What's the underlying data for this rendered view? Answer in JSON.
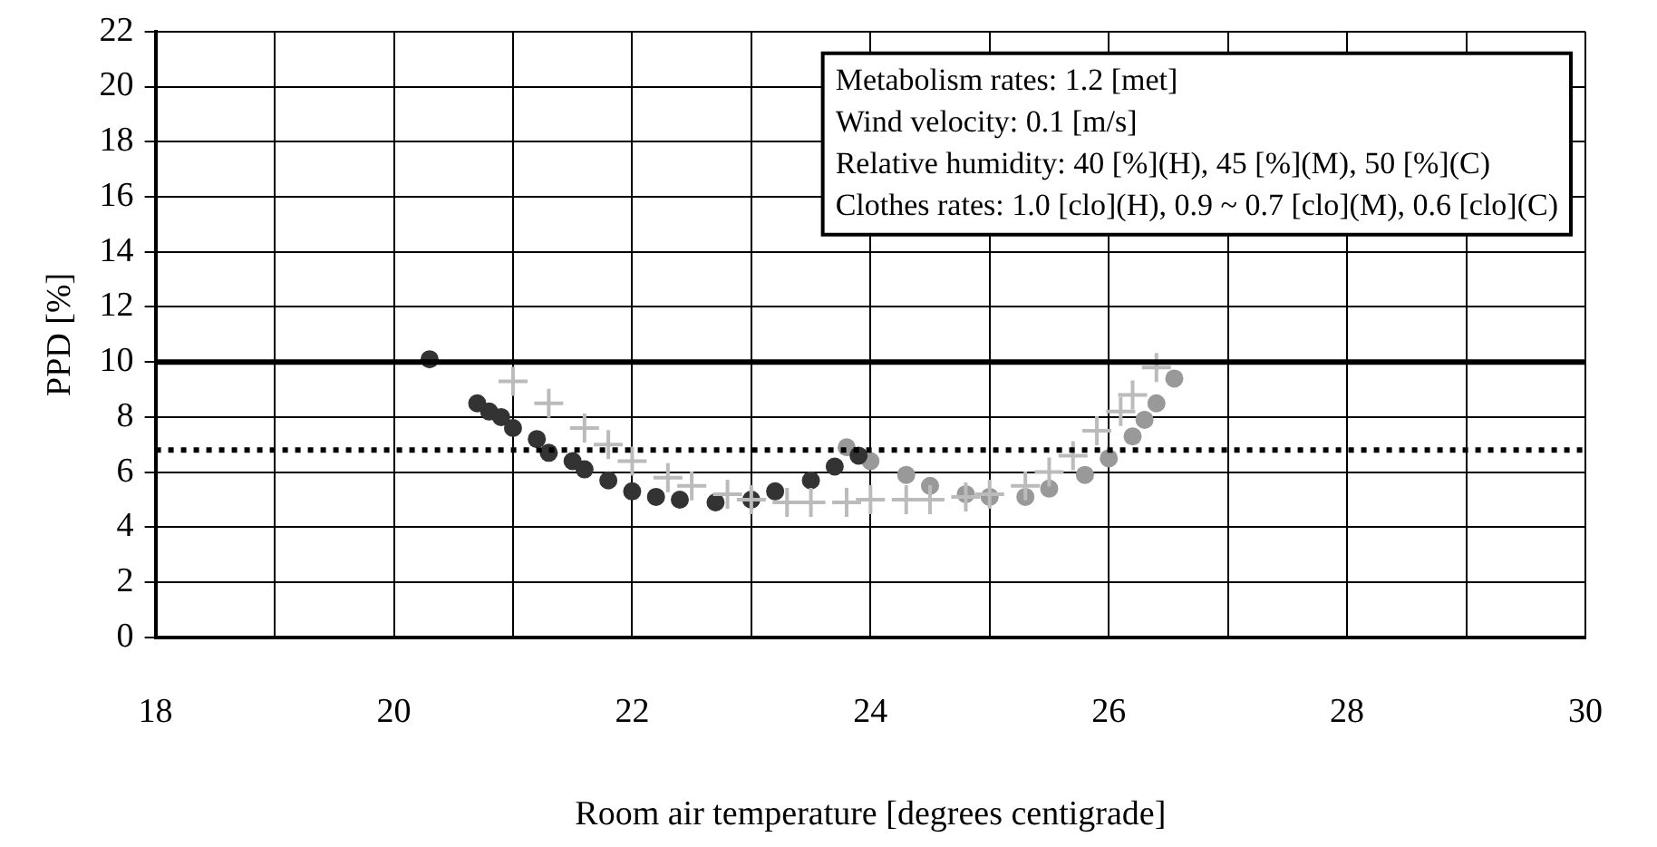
{
  "chart_data": {
    "type": "scatter",
    "xlabel": "Room air temperature [degrees centigrade]",
    "ylabel": "PPD [%]",
    "xlim": [
      18,
      30
    ],
    "xticks": [
      18,
      {
        "value": 19,
        "label": null
      },
      20,
      {
        "value": 21,
        "label": null
      },
      22,
      {
        "value": 23,
        "label": null
      },
      24,
      {
        "value": 25,
        "label": null
      },
      26,
      {
        "value": 27,
        "label": null
      },
      28,
      {
        "value": 29,
        "label": null
      },
      30
    ],
    "ylim": [
      0,
      22
    ],
    "yticks": [
      0,
      2,
      4,
      6,
      8,
      10,
      12,
      14,
      16,
      18,
      20,
      22
    ],
    "grid": true,
    "legend": false,
    "series": [
      {
        "color": "#bbbbbb",
        "marker": "cross",
        "x": [
          21.0,
          21.3,
          21.6,
          21.8,
          22.0,
          22.3,
          22.5,
          22.8,
          23.0,
          23.3,
          23.5,
          23.8,
          24.0,
          24.3,
          24.5,
          24.8,
          25.0,
          25.3,
          25.5,
          25.7,
          25.9,
          26.1,
          26.2,
          26.4
        ],
        "values": [
          9.3,
          8.5,
          7.6,
          7.0,
          6.4,
          5.8,
          5.5,
          5.2,
          5.0,
          4.9,
          4.9,
          4.9,
          5.0,
          5.0,
          5.0,
          5.1,
          5.2,
          5.5,
          6.0,
          6.6,
          7.5,
          8.2,
          8.8,
          9.8
        ]
      },
      {
        "color": "#333333",
        "marker": "circle",
        "x": [
          20.3,
          20.7,
          20.8,
          20.9,
          21.0,
          21.2,
          21.3,
          21.5,
          21.6,
          21.8,
          22.0,
          22.2,
          22.4,
          22.7,
          23.0,
          23.2,
          23.5,
          23.7,
          23.9
        ],
        "values": [
          10.1,
          8.5,
          8.2,
          8.0,
          7.6,
          7.2,
          6.7,
          6.4,
          6.1,
          5.7,
          5.3,
          5.1,
          5.0,
          4.9,
          5.0,
          5.3,
          5.7,
          6.2,
          6.6
        ]
      },
      {
        "color": "#999999",
        "marker": "circle",
        "x": [
          23.8,
          24.0,
          24.3,
          24.5,
          24.8,
          25.0,
          25.3,
          25.5,
          25.8,
          26.0,
          26.2,
          26.3,
          26.4,
          26.55
        ],
        "values": [
          6.9,
          6.4,
          5.9,
          5.5,
          5.2,
          5.1,
          5.1,
          5.4,
          5.9,
          6.5,
          7.3,
          7.9,
          8.5,
          9.4
        ]
      }
    ],
    "ref_lines": [
      {
        "axis": "y",
        "value": 10,
        "line_style": "solid",
        "color": "#000000"
      },
      {
        "axis": "y",
        "value": 6.8,
        "line_style": "dotted",
        "color": "#000000"
      }
    ],
    "annotations": [
      "Metabolism rates: 1.2 [met]",
      "Wind velocity: 0.1 [m/s]",
      "Relative humidity: 40 [%](H), 45 [%](M), 50 [%](C)",
      "Clothes rates: 1.0 [clo](H), 0.9 ~ 0.7 [clo](M), 0.6 [clo](C)"
    ]
  }
}
